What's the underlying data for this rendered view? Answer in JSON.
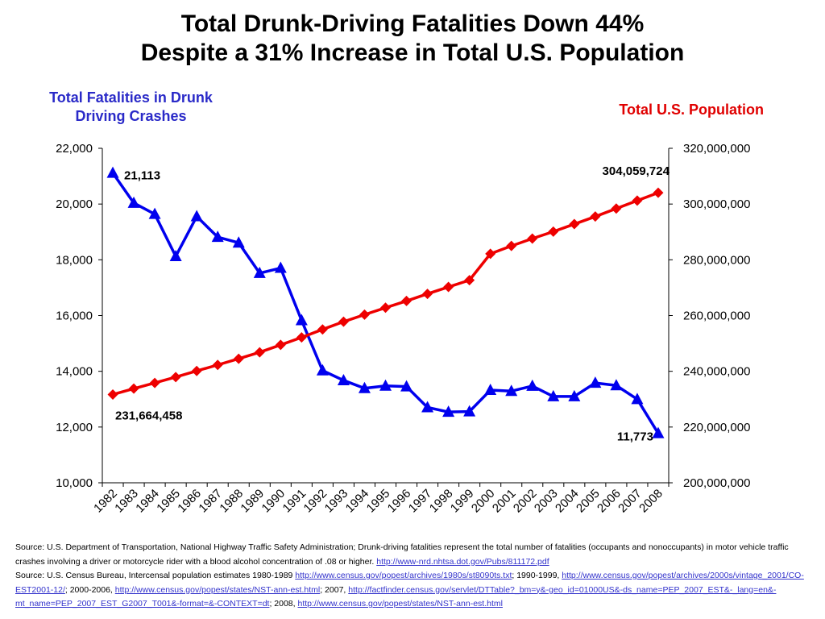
{
  "title": {
    "line1": "Total Drunk-Driving Fatalities Down 44%",
    "line2": "Despite a 31% Increase in Total U.S. Population"
  },
  "chart_data": {
    "type": "line",
    "categories": [
      "1982",
      "1983",
      "1984",
      "1985",
      "1986",
      "1987",
      "1988",
      "1989",
      "1990",
      "1991",
      "1992",
      "1993",
      "1994",
      "1995",
      "1996",
      "1997",
      "1998",
      "1999",
      "2000",
      "2001",
      "2002",
      "2003",
      "2004",
      "2005",
      "2006",
      "2007",
      "2008"
    ],
    "left_axis": {
      "title_line1": "Total Fatalities in Drunk",
      "title_line2": "Driving Crashes",
      "ylim": [
        10000,
        22000
      ],
      "ticks": [
        10000,
        12000,
        14000,
        16000,
        18000,
        20000,
        22000
      ],
      "tick_labels": [
        "10,000",
        "12,000",
        "14,000",
        "16,000",
        "18,000",
        "20,000",
        "22,000"
      ],
      "color": "#0000ee"
    },
    "right_axis": {
      "title": "Total U.S. Population",
      "ylim": [
        200000000,
        320000000
      ],
      "ticks": [
        200000000,
        220000000,
        240000000,
        260000000,
        280000000,
        300000000,
        320000000
      ],
      "tick_labels": [
        "200,000,000",
        "220,000,000",
        "240,000,000",
        "260,000,000",
        "280,000,000",
        "300,000,000",
        "320,000,000"
      ],
      "color": "#ee0000"
    },
    "series": [
      {
        "axis": "left",
        "marker": "triangle",
        "color": "#0000ee",
        "values": [
          21113,
          20039,
          19638,
          18125,
          19555,
          18814,
          18611,
          17521,
          17705,
          15827,
          14026,
          13674,
          13390,
          13478,
          13451,
          12705,
          12540,
          12555,
          13324,
          13290,
          13472,
          13096,
          13099,
          13582,
          13491,
          12998,
          11773
        ]
      },
      {
        "axis": "right",
        "marker": "diamond",
        "color": "#ee0000",
        "values": [
          231664458,
          233792000,
          235825000,
          237924000,
          240133000,
          242289000,
          244499000,
          246819000,
          249464000,
          252153000,
          255030000,
          257783000,
          260327000,
          262803000,
          265229000,
          267784000,
          270248000,
          272691000,
          282162000,
          284969000,
          287625000,
          290108000,
          292805000,
          295517000,
          298380000,
          301231000,
          304059724
        ]
      }
    ],
    "annotations": {
      "first_fatalities": "21,113",
      "last_fatalities": "11,773",
      "first_population": "231,664,458",
      "last_population": "304,059,724"
    },
    "grid": false,
    "legend": "none"
  },
  "sources": {
    "p1_text": "Source: U.S. Department of Transportation, National Highway Traffic Safety Administration; Drunk-driving fatalities represent the total number of fatalities (occupants and nonoccupants) in motor vehicle traffic crashes involving a driver or motorcycle rider with a blood alcohol concentration of .08 or higher.",
    "p1_link": "http://www-nrd.nhtsa.dot.gov/Pubs/811172.pdf",
    "p2_prefix": "Source: U.S. Census Bureau, Intercensal population estimates 1980-1989",
    "p2_link1": "http://www.census.gov/popest/archives/1980s/st8090ts.txt",
    "p2_mid1": "; 1990-1999,",
    "p2_link2": "http://www.census.gov/popest/archives/2000s/vintage_2001/CO-EST2001-12/",
    "p2_mid2": "; 2000-2006,",
    "p2_link3": "http://www.census.gov/popest/states/NST-ann-est.html",
    "p2_mid3": "; 2007,",
    "p2_link4": "http://factfinder.census.gov/servlet/DTTable?_bm=y&-geo_id=01000US&-ds_name=PEP_2007_EST&-_lang=en&-mt_name=PEP_2007_EST_G2007_T001&-format=&-CONTEXT=dt",
    "p2_mid4": "; 2008,",
    "p2_link5": "http://www.census.gov/popest/states/NST-ann-est.html"
  }
}
